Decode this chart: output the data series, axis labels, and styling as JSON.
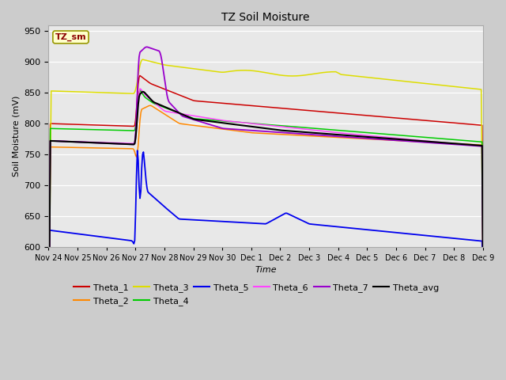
{
  "title": "TZ Soil Moisture",
  "xlabel": "Time",
  "ylabel": "Soil Moisture (mV)",
  "ylim": [
    600,
    960
  ],
  "yticks": [
    600,
    650,
    700,
    750,
    800,
    850,
    900,
    950
  ],
  "annotation_text": "TZ_sm",
  "annotation_color": "#8B0000",
  "annotation_bg": "#ffffcc",
  "colors": {
    "Theta_1": "#cc0000",
    "Theta_2": "#ff8800",
    "Theta_3": "#dddd00",
    "Theta_4": "#00cc00",
    "Theta_5": "#0000ee",
    "Theta_6": "#ff44ff",
    "Theta_7": "#9900cc",
    "Theta_avg": "#000000"
  },
  "x_tick_labels": [
    "Nov 24",
    "Nov 25",
    "Nov 26",
    "Nov 27",
    "Nov 28",
    "Nov 29",
    "Nov 30",
    "Dec 1",
    "Dec 2",
    "Dec 3",
    "Dec 4",
    "Dec 5",
    "Dec 6",
    "Dec 7",
    "Dec 8",
    "Dec 9"
  ],
  "n_points": 500
}
